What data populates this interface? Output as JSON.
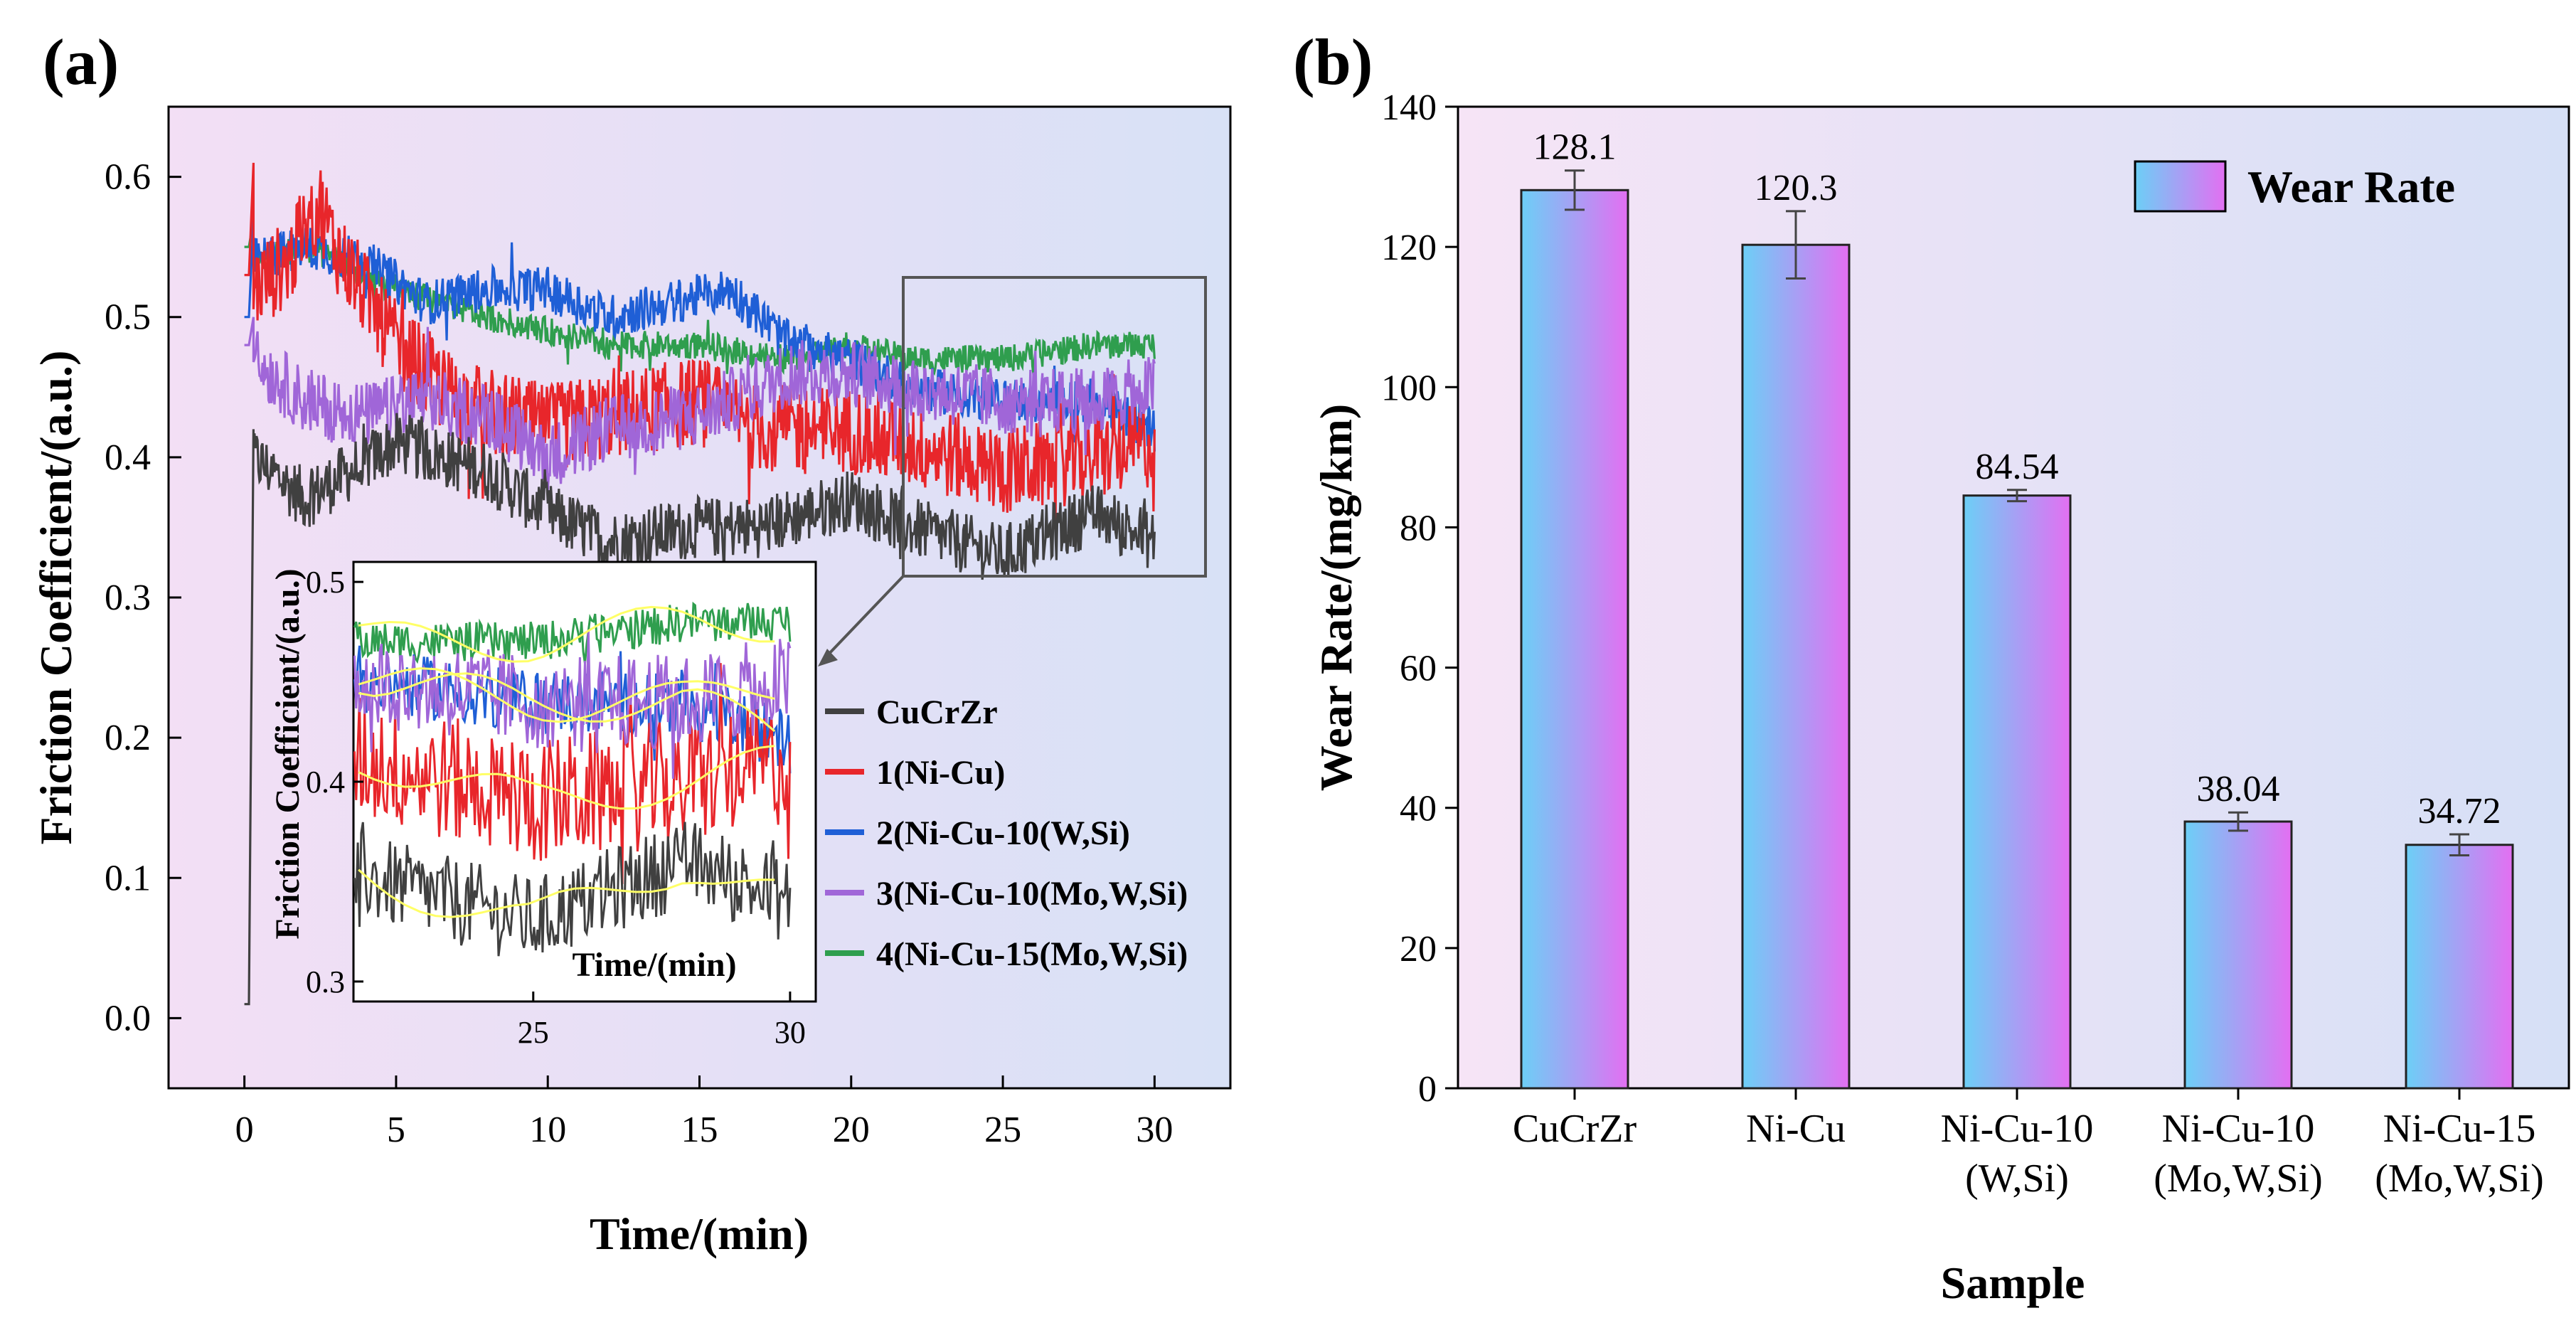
{
  "chart_data": [
    {
      "panel_label": "(a)",
      "type": "line",
      "xlabel": "Time/(min)",
      "ylabel": "Friction Coefficient/(a.u.)",
      "xlim": [
        -2.5,
        32.5
      ],
      "ylim": [
        -0.05,
        0.65
      ],
      "xticks": [
        "0",
        "5",
        "10",
        "15",
        "20",
        "25",
        "30"
      ],
      "yticks": [
        "0.0",
        "0.1",
        "0.2",
        "0.3",
        "0.4",
        "0.5",
        "0.6"
      ],
      "legend_position": "right-middle",
      "series": [
        {
          "name": "CuCrZr",
          "color": "#404040",
          "start": 0.01,
          "peak": 0.42,
          "x": [
            0.3,
            2,
            5,
            8,
            10,
            12,
            15,
            17,
            20,
            22,
            25,
            28,
            30
          ],
          "y": [
            0.4,
            0.37,
            0.41,
            0.39,
            0.36,
            0.34,
            0.35,
            0.35,
            0.37,
            0.35,
            0.33,
            0.36,
            0.34
          ]
        },
        {
          "name": "1(Ni-Cu)",
          "color": "#e8262b",
          "start": 0.53,
          "peak": 0.61,
          "x": [
            0.3,
            1.5,
            2.5,
            3,
            5,
            7,
            10,
            12,
            15,
            17,
            20,
            22,
            25,
            28,
            30
          ],
          "y": [
            0.52,
            0.54,
            0.58,
            0.55,
            0.48,
            0.44,
            0.42,
            0.43,
            0.44,
            0.42,
            0.42,
            0.41,
            0.39,
            0.4,
            0.41
          ]
        },
        {
          "name": "2(Ni-Cu-10(W,Si)",
          "color": "#1f5fd6",
          "start": 0.5,
          "peak": 0.57,
          "x": [
            0.3,
            2,
            4,
            6,
            8,
            10,
            12,
            14,
            16,
            17,
            18,
            20,
            22,
            25,
            28,
            30
          ],
          "y": [
            0.54,
            0.55,
            0.54,
            0.51,
            0.52,
            0.52,
            0.5,
            0.51,
            0.52,
            0.5,
            0.48,
            0.47,
            0.45,
            0.44,
            0.44,
            0.42
          ]
        },
        {
          "name": "3(Ni-Cu-10(Mo,W,Si)",
          "color": "#a066d8",
          "start": 0.48,
          "peak": 0.5,
          "x": [
            0.3,
            2,
            4,
            6,
            8,
            10,
            12,
            15,
            18,
            20,
            22,
            25,
            28,
            30
          ],
          "y": [
            0.47,
            0.44,
            0.43,
            0.44,
            0.43,
            0.4,
            0.42,
            0.43,
            0.46,
            0.46,
            0.45,
            0.44,
            0.44,
            0.45
          ]
        },
        {
          "name": "4(Ni-Cu-15(Mo,W,Si)",
          "color": "#2f9e4e",
          "start": 0.55,
          "peak": 0.57,
          "x": [
            0.3,
            2,
            5,
            8,
            10,
            12,
            15,
            18,
            20,
            22,
            25,
            28,
            30
          ],
          "y": [
            0.54,
            0.55,
            0.52,
            0.5,
            0.49,
            0.48,
            0.48,
            0.47,
            0.48,
            0.47,
            0.47,
            0.48,
            0.48
          ]
        }
      ],
      "inset": {
        "xlabel": "Time/(min)",
        "ylabel": "Friction Coefficient/(a.u.)",
        "xlim": [
          21.5,
          30.5
        ],
        "ylim": [
          0.29,
          0.51
        ],
        "xticks": [
          "25",
          "30"
        ],
        "yticks": [
          "0.3",
          "0.4",
          "0.5"
        ],
        "note": "zoom of the 22–30 min region, yellow smoothed trend lines"
      }
    },
    {
      "panel_label": "(b)",
      "type": "bar",
      "title": "",
      "xlabel": "Sample",
      "ylabel": "Wear Rate/(mg/km)",
      "ylim": [
        0,
        140
      ],
      "yticks": [
        "0",
        "20",
        "40",
        "60",
        "80",
        "100",
        "120",
        "140"
      ],
      "legend": "Wear Rate",
      "legend_position": "top-right",
      "categories": [
        [
          "CuCrZr"
        ],
        [
          "Ni-Cu"
        ],
        [
          "Ni-Cu-10",
          "(W,Si)"
        ],
        [
          "Ni-Cu-10",
          "(Mo,W,Si)"
        ],
        [
          "Ni-Cu-15",
          "(Mo,W,Si)"
        ]
      ],
      "values": [
        128.1,
        120.3,
        84.54,
        38.04,
        34.72
      ],
      "value_labels": [
        "128.1",
        "120.3",
        "84.54",
        "38.04",
        "34.72"
      ],
      "errors": [
        2.8,
        4.8,
        0.8,
        1.3,
        1.5
      ],
      "colors": {
        "bar_left": "#6ccff6",
        "bar_right": "#e36ff2"
      }
    }
  ]
}
